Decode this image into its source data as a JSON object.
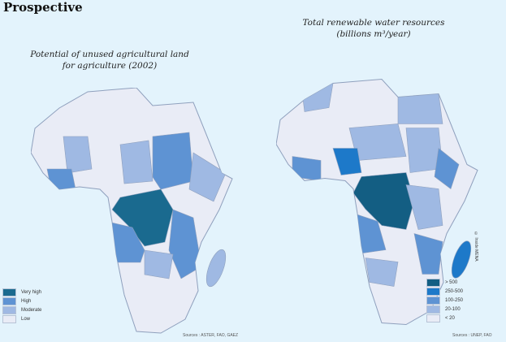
{
  "page_title": "Prospective",
  "left_map": {
    "title_line1": "Potential of unused agricultural land",
    "title_line2": "for agriculture (2002)",
    "legend": [
      {
        "label": "Very high",
        "color": "#1a6a8f"
      },
      {
        "label": "High",
        "color": "#5e93d3"
      },
      {
        "label": "Moderate",
        "color": "#9fb9e3"
      },
      {
        "label": "Low",
        "color": "#e9ecf6"
      }
    ],
    "sources": "Sources : ASTER, FAO, GAEZ"
  },
  "right_map": {
    "title_line1": "Total renewable water resources",
    "title_line2": "(billions m³/year)",
    "legend": [
      {
        "label": "> 500",
        "color": "#135e83"
      },
      {
        "label": "250-500",
        "color": "#1d79c9"
      },
      {
        "label": "100-250",
        "color": "#5e93d3"
      },
      {
        "label": "20-100",
        "color": "#9fb9e3"
      },
      {
        "label": "< 20",
        "color": "#e9ecf6"
      }
    ],
    "sources": "Sources : UNEP, FAO"
  },
  "credit": "© Inside MENA"
}
